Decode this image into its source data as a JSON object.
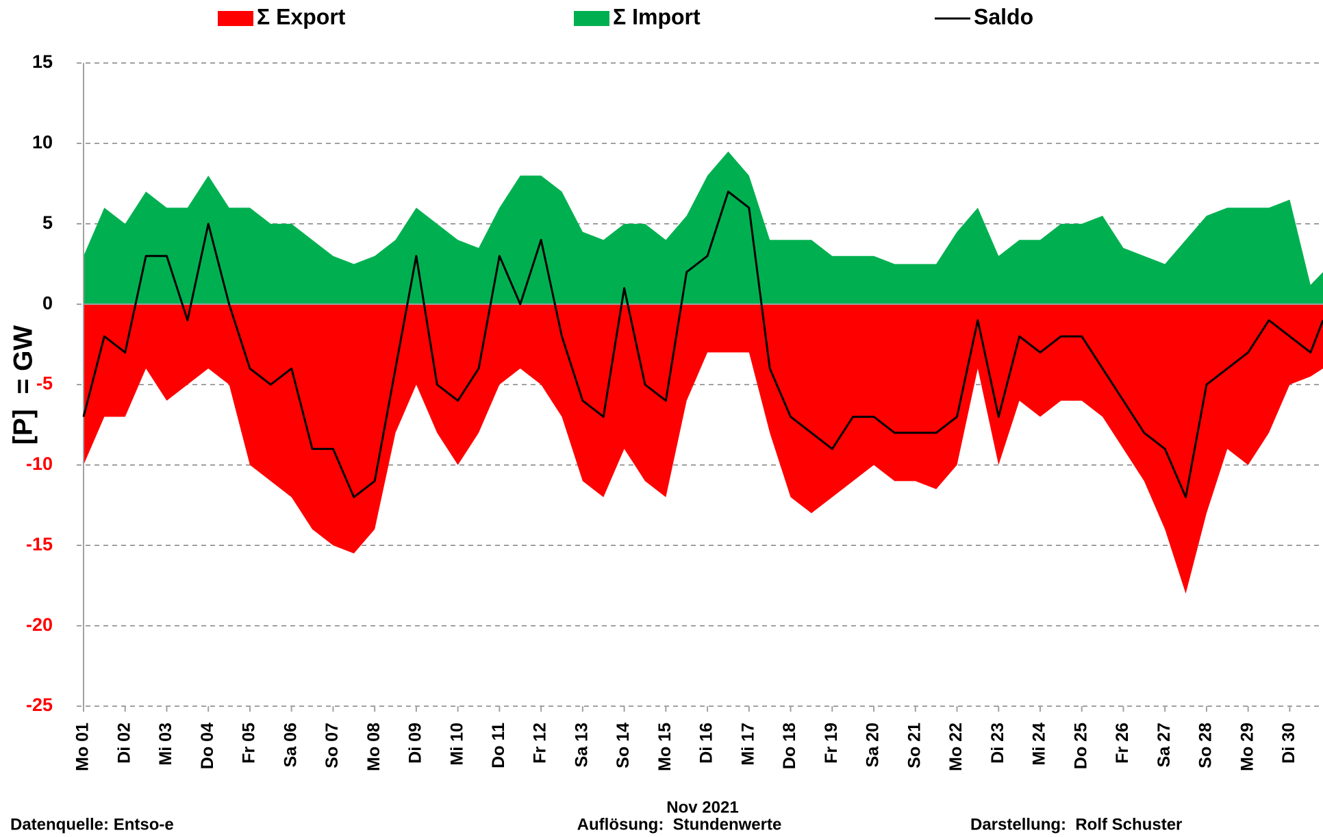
{
  "chart_data": {
    "type": "area",
    "legend": "top",
    "y_label": "[P]  = GW",
    "x_label": "Nov 2021",
    "source": "Datenquelle: Entso-e",
    "resolution": "Auflösung:  Stundenwerte",
    "author": "Darstellung:  Rolf Schuster",
    "grid": true,
    "negative_tick_color": "#ff0000",
    "xlim": [
      1,
      30.8
    ],
    "ylim": [
      -25,
      15
    ],
    "yticks": [
      -25,
      -20,
      -15,
      -10,
      -5,
      0,
      5,
      10,
      15
    ],
    "xticks": [
      {
        "value": 1,
        "label": "Mo 01"
      },
      {
        "value": 2,
        "label": "Di 02"
      },
      {
        "value": 3,
        "label": "Mi 03"
      },
      {
        "value": 4,
        "label": "Do 04"
      },
      {
        "value": 5,
        "label": "Fr 05"
      },
      {
        "value": 6,
        "label": "Sa 06"
      },
      {
        "value": 7,
        "label": "So 07"
      },
      {
        "value": 8,
        "label": "Mo 08"
      },
      {
        "value": 9,
        "label": "Di 09"
      },
      {
        "value": 10,
        "label": "Mi 10"
      },
      {
        "value": 11,
        "label": "Do 11"
      },
      {
        "value": 12,
        "label": "Fr 12"
      },
      {
        "value": 13,
        "label": "Sa 13"
      },
      {
        "value": 14,
        "label": "So 14"
      },
      {
        "value": 15,
        "label": "Mo 15"
      },
      {
        "value": 16,
        "label": "Di 16"
      },
      {
        "value": 17,
        "label": "Mi 17"
      },
      {
        "value": 18,
        "label": "Do 18"
      },
      {
        "value": 19,
        "label": "Fr 19"
      },
      {
        "value": 20,
        "label": "Sa 20"
      },
      {
        "value": 21,
        "label": "So 21"
      },
      {
        "value": 22,
        "label": "Mo 22"
      },
      {
        "value": 23,
        "label": "Di 23"
      },
      {
        "value": 24,
        "label": "Mi 24"
      },
      {
        "value": 25,
        "label": "Do 25"
      },
      {
        "value": 26,
        "label": "Fr 26"
      },
      {
        "value": 27,
        "label": "Sa 27"
      },
      {
        "value": 28,
        "label": "So 28"
      },
      {
        "value": 29,
        "label": "Mo 29"
      },
      {
        "value": 30,
        "label": "Di 30"
      }
    ],
    "x": [
      1,
      1.5,
      2,
      2.5,
      3,
      3.5,
      4,
      4.5,
      5,
      5.5,
      6,
      6.5,
      7,
      7.5,
      8,
      8.5,
      9,
      9.5,
      10,
      10.5,
      11,
      11.5,
      12,
      12.5,
      13,
      13.5,
      14,
      14.5,
      15,
      15.5,
      16,
      16.5,
      17,
      17.5,
      18,
      18.5,
      19,
      19.5,
      20,
      20.5,
      21,
      21.5,
      22,
      22.5,
      23,
      23.5,
      24,
      24.5,
      25,
      25.5,
      26,
      26.5,
      27,
      27.5,
      28,
      28.5,
      29,
      29.5,
      30,
      30.5,
      30.8
    ],
    "series": [
      {
        "name": "Σ Export",
        "color": "#ff0000",
        "kind": "area",
        "values": [
          -10,
          -7,
          -7,
          -4,
          -6,
          -5,
          -4,
          -5,
          -10,
          -11,
          -12,
          -14,
          -15,
          -15.5,
          -14,
          -8,
          -5,
          -8,
          -10,
          -8,
          -5,
          -4,
          -5,
          -7,
          -11,
          -12,
          -9,
          -11,
          -12,
          -6,
          -3,
          -3,
          -3,
          -8,
          -12,
          -13,
          -12,
          -11,
          -10,
          -11,
          -11,
          -11.5,
          -10,
          -4,
          -10,
          -6,
          -7,
          -6,
          -6,
          -7,
          -9,
          -11,
          -14,
          -18,
          -13,
          -9,
          -10,
          -8,
          -5,
          -4.5,
          -4
        ]
      },
      {
        "name": "Σ Import",
        "color": "#00b050",
        "kind": "area",
        "values": [
          3,
          6,
          5,
          7,
          6,
          6,
          8,
          6,
          6,
          5,
          5,
          4,
          3,
          2.5,
          3,
          4,
          6,
          5,
          4,
          3.5,
          6,
          8,
          8,
          7,
          4.5,
          4,
          5,
          5,
          4,
          5.5,
          8,
          9.5,
          8,
          4,
          4,
          4,
          3,
          3,
          3,
          2.5,
          2.5,
          2.5,
          4.5,
          6,
          3,
          4,
          4,
          5,
          5,
          5.5,
          3.5,
          3,
          2.5,
          4,
          5.5,
          6,
          6,
          6,
          6.5,
          1.2,
          2
        ]
      },
      {
        "name": "Saldo",
        "color": "#000000",
        "kind": "line",
        "values": [
          -7,
          -2,
          -3,
          3,
          3,
          -1,
          5,
          0,
          -4,
          -5,
          -4,
          -9,
          -9,
          -12,
          -11,
          -4,
          3,
          -5,
          -6,
          -4,
          3,
          0,
          4,
          -2,
          -6,
          -7,
          1,
          -5,
          -6,
          2,
          3,
          7,
          6,
          -4,
          -7,
          -8,
          -9,
          -7,
          -7,
          -8,
          -8,
          -8,
          -7,
          -1,
          -7,
          -2,
          -3,
          -2,
          -2,
          -4,
          -6,
          -8,
          -9,
          -12,
          -5,
          -4,
          -3,
          -1,
          -2,
          -3,
          -1
        ]
      }
    ]
  }
}
